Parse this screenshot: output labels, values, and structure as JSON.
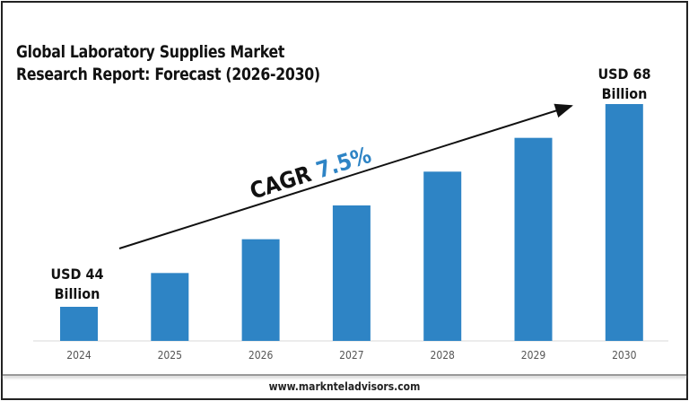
{
  "title_lines": [
    "Global Laboratory Supplies Market",
    "Research Report: Forecast (2026-2030)"
  ],
  "footer": "www.marknteladvisors.com",
  "chart_data": {
    "type": "bar",
    "title": "Global Laboratory Supplies Market Research Report: Forecast (2026-2030)",
    "categories": [
      "2024",
      "2025",
      "2026",
      "2027",
      "2028",
      "2029",
      "2030"
    ],
    "values": [
      44,
      48,
      52,
      56,
      60,
      64,
      68
    ],
    "unit": "USD Billion",
    "ylim": [
      40,
      68
    ],
    "grid": false,
    "bar_color": "#2E84C5",
    "annotations": {
      "start_label": [
        "USD 44",
        "Billion"
      ],
      "end_label": [
        "USD 68",
        "Billion"
      ],
      "cagr_prefix": "CAGR ",
      "cagr_value": "7.5%",
      "cagr_color": "#2E84C5"
    }
  }
}
